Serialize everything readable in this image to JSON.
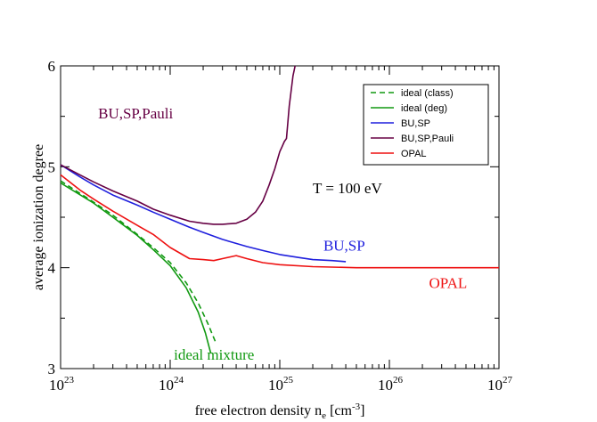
{
  "chart_data": {
    "type": "line",
    "xscale": "log",
    "xlim": [
      1e+23,
      1e+27
    ],
    "ylim": [
      3,
      6
    ],
    "xlabel": "free electron density n",
    "xlabel_sub": "e",
    "xlabel_unit": " [cm",
    "xlabel_unit_sup": "-3",
    "xlabel_end": "]",
    "ylabel": "average ionization degree",
    "x_ticks": [
      {
        "value": 1e+23,
        "base": "10",
        "exp": "23"
      },
      {
        "value": 1e+24,
        "base": "10",
        "exp": "24"
      },
      {
        "value": 1e+25,
        "base": "10",
        "exp": "25"
      },
      {
        "value": 1e+26,
        "base": "10",
        "exp": "26"
      },
      {
        "value": 1e+27,
        "base": "10",
        "exp": "27"
      }
    ],
    "y_ticks": [
      {
        "value": 3,
        "label": "3"
      },
      {
        "value": 4,
        "label": "4"
      },
      {
        "value": 5,
        "label": "5"
      },
      {
        "value": 6,
        "label": "6"
      }
    ],
    "legend_position": "top-right",
    "series": [
      {
        "name": "ideal (class)",
        "color": "#119911",
        "dash": "6,4",
        "x": [
          1e+23,
          2e+23,
          3e+23,
          5e+23,
          7e+23,
          1e+24,
          1.4e+24,
          1.8e+24,
          2.2e+24,
          2.6e+24
        ],
        "y": [
          4.86,
          4.65,
          4.52,
          4.33,
          4.2,
          4.05,
          3.85,
          3.65,
          3.45,
          3.26
        ]
      },
      {
        "name": "ideal (deg)",
        "color": "#119911",
        "dash": "",
        "x": [
          1e+23,
          2e+23,
          3e+23,
          5e+23,
          7e+23,
          1e+24,
          1.4e+24,
          1.8e+24,
          2.1e+24,
          2.35e+24
        ],
        "y": [
          4.84,
          4.64,
          4.5,
          4.32,
          4.18,
          4.02,
          3.8,
          3.56,
          3.35,
          3.15
        ]
      },
      {
        "name": "BU,SP",
        "color": "#1f1fdd",
        "dash": "",
        "x": [
          1e+23,
          1.5e+23,
          2e+23,
          3e+23,
          5e+23,
          7e+23,
          1e+24,
          1.5e+24,
          2e+24,
          3e+24,
          5e+24,
          7e+24,
          1e+25,
          1.5e+25,
          2e+25,
          3e+25,
          4e+25
        ],
        "y": [
          5.02,
          4.9,
          4.82,
          4.72,
          4.62,
          4.55,
          4.48,
          4.4,
          4.35,
          4.28,
          4.21,
          4.17,
          4.13,
          4.1,
          4.08,
          4.07,
          4.06
        ]
      },
      {
        "name": "BU,SP,Pauli",
        "color": "#660044",
        "dash": "",
        "x": [
          1e+23,
          1.5e+23,
          2e+23,
          3e+23,
          5e+23,
          7e+23,
          1e+24,
          1.5e+24,
          2e+24,
          2.5e+24,
          3e+24,
          4e+24,
          5e+24,
          6e+24,
          7e+24,
          8e+24,
          9e+24,
          1e+25,
          1.05e+25,
          1.1e+25,
          1.15e+25,
          1.22e+25,
          1.32e+25,
          1.38e+25
        ],
        "y": [
          5.02,
          4.92,
          4.85,
          4.76,
          4.66,
          4.58,
          4.52,
          4.46,
          4.44,
          4.43,
          4.43,
          4.44,
          4.48,
          4.55,
          4.66,
          4.82,
          4.98,
          5.15,
          5.2,
          5.25,
          5.28,
          5.6,
          5.9,
          6.0
        ]
      },
      {
        "name": "OPAL",
        "color": "#ee1111",
        "dash": "",
        "x": [
          1e+23,
          1.5e+23,
          2e+23,
          3e+23,
          5e+23,
          7e+23,
          1e+24,
          1.5e+24,
          2e+24,
          2.5e+24,
          3e+24,
          4e+24,
          5e+24,
          7e+24,
          1e+25,
          2e+25,
          5e+25,
          1e+26,
          1e+27
        ],
        "y": [
          4.92,
          4.77,
          4.68,
          4.56,
          4.42,
          4.33,
          4.2,
          4.09,
          4.08,
          4.07,
          4.09,
          4.12,
          4.09,
          4.05,
          4.03,
          4.01,
          4.0,
          4.0,
          4.0
        ]
      }
    ],
    "annotations": [
      {
        "text": "BU,SP,Pauli",
        "color": "#660044",
        "x": 2.2e+23,
        "y": 5.48
      },
      {
        "text": "BU,SP",
        "color": "#1f1fdd",
        "x": 2.5e+25,
        "y": 4.17
      },
      {
        "text": "OPAL",
        "color": "#ee1111",
        "x": 2.3e+26,
        "y": 3.8
      },
      {
        "text": "ideal mixture",
        "color": "#119911",
        "x": 1.08e+24,
        "y": 3.09
      }
    ],
    "inset_label": {
      "text": "T = 100 eV",
      "color": "#000000",
      "x": 2e+25,
      "y": 4.74
    }
  }
}
